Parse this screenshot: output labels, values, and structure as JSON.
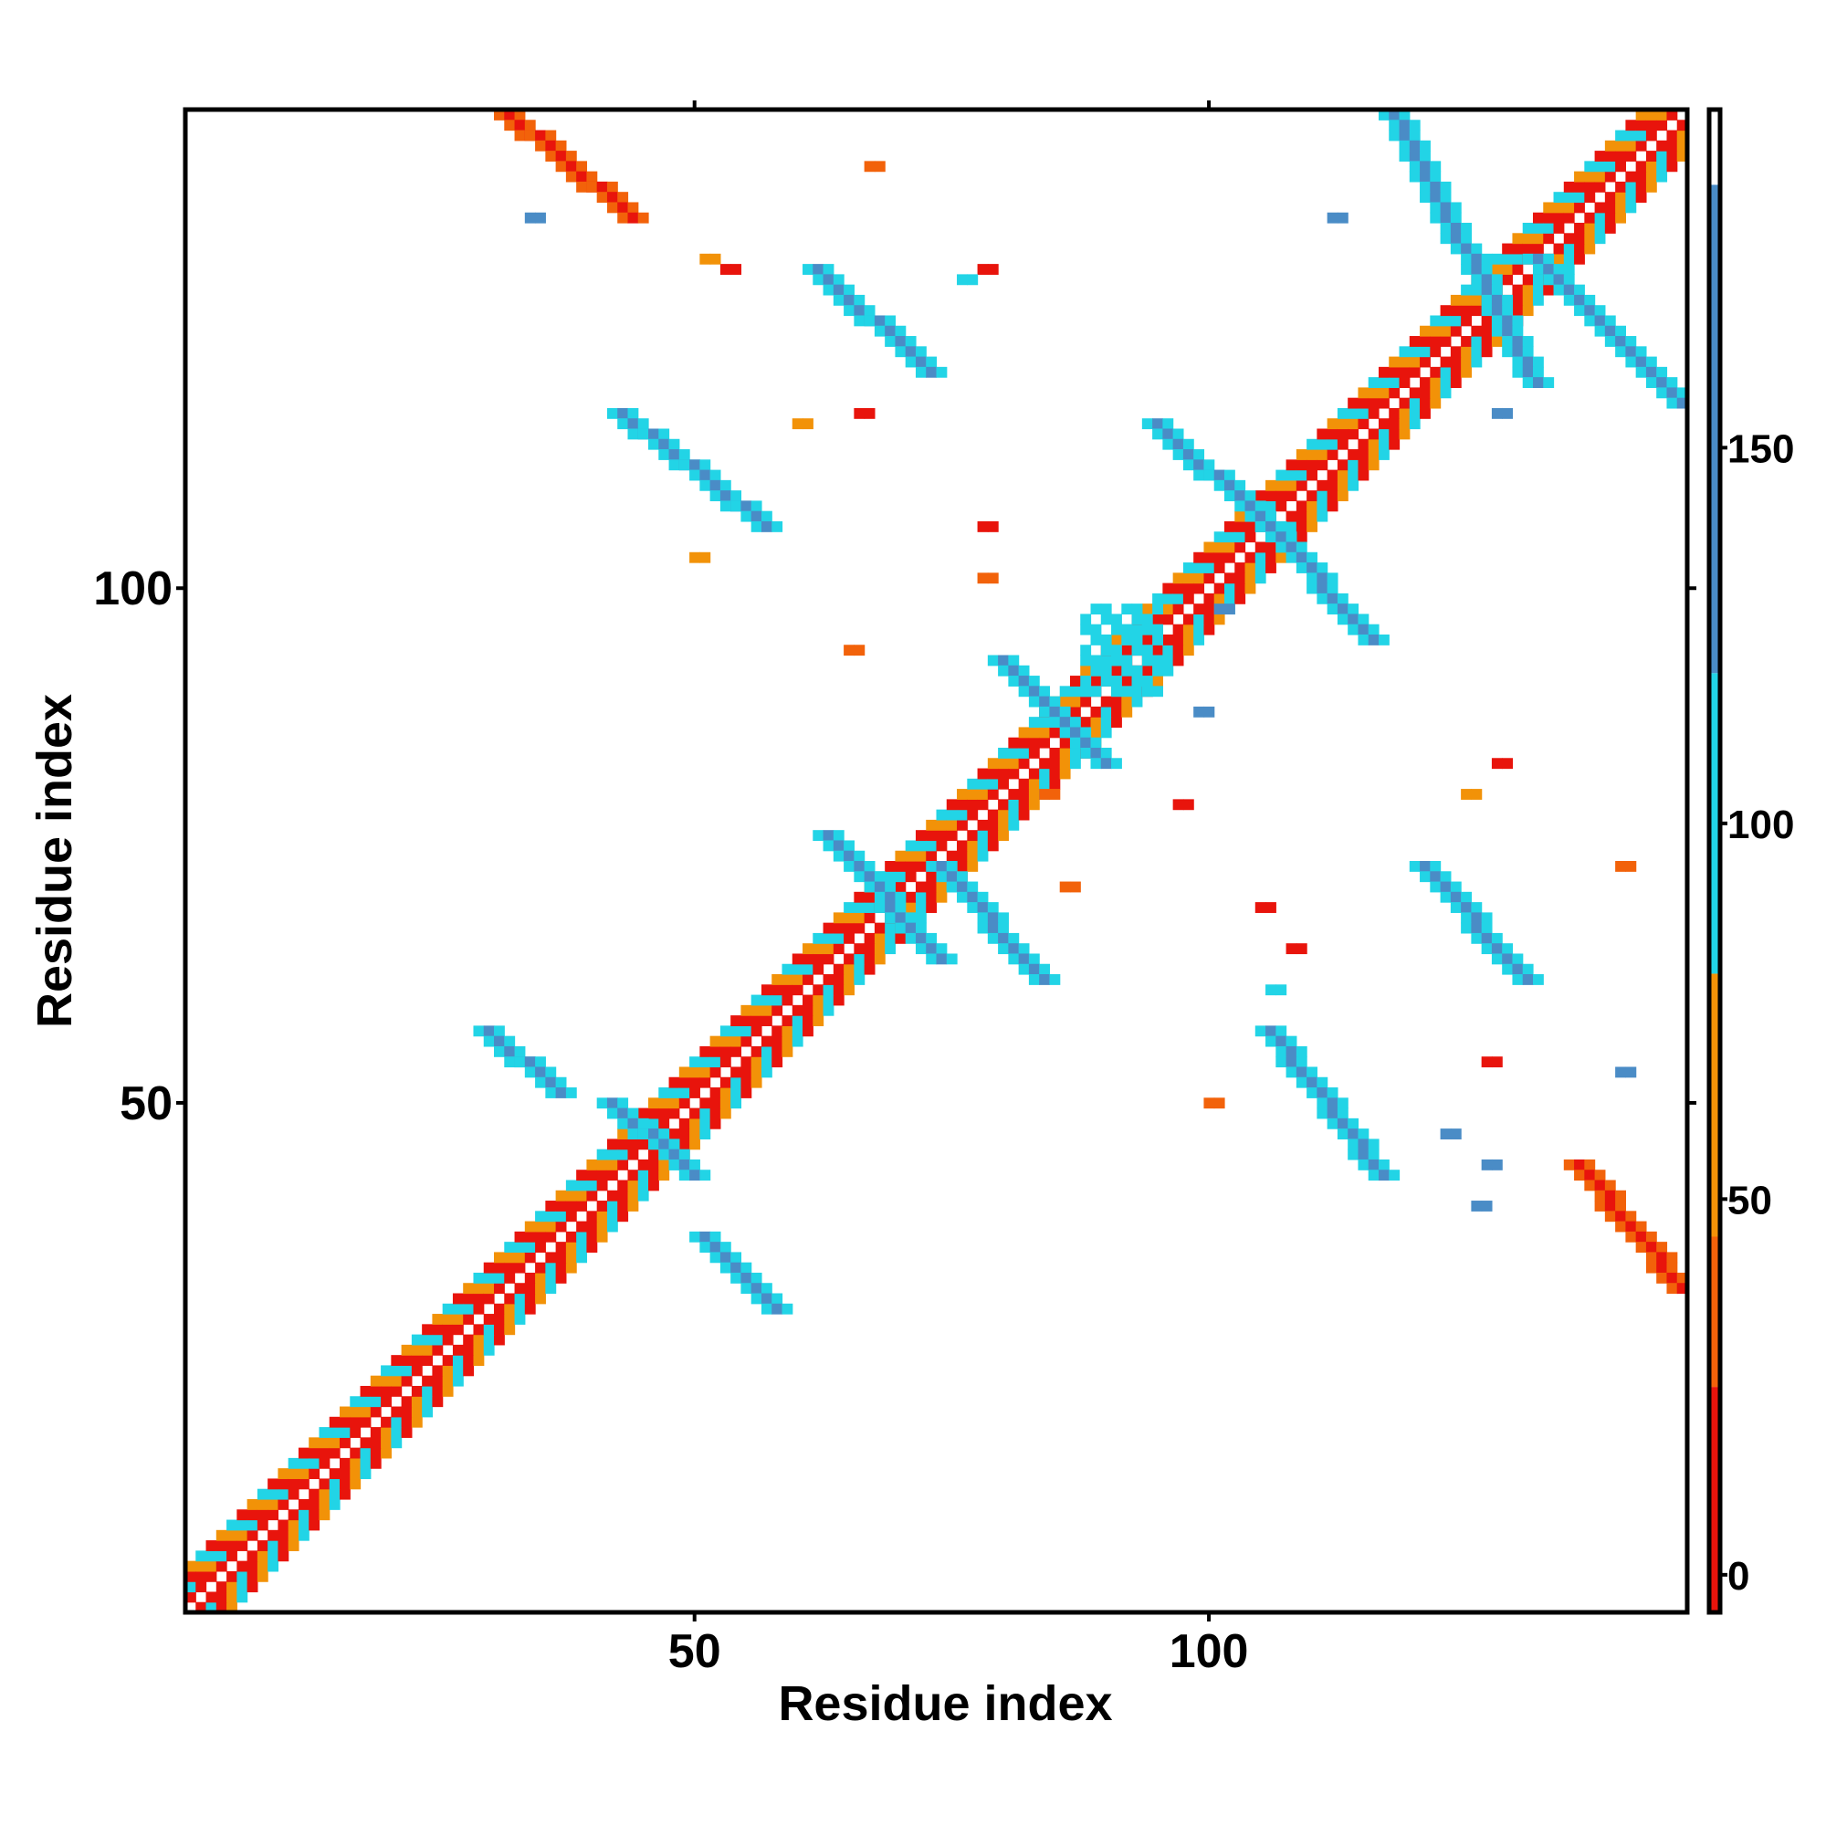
{
  "chart_data": {
    "type": "heatmap",
    "title": "",
    "xlabel": "Residue index",
    "ylabel": "Residue index",
    "xlim": [
      1,
      146
    ],
    "ylim": [
      1,
      146
    ],
    "x_ticks": [
      50,
      100
    ],
    "y_ticks": [
      50,
      100
    ],
    "x_tick_labels": [
      "50",
      "100"
    ],
    "y_tick_labels": [
      "50",
      "100"
    ],
    "grid": false,
    "legend": "right",
    "colorbar": {
      "range": [
        -5,
        195
      ],
      "ticks": [
        0,
        50,
        100,
        150
      ],
      "tick_labels": [
        "0",
        "50",
        "100",
        "150"
      ],
      "stops": [
        {
          "from": -5,
          "to": 25,
          "color": "#e8140c"
        },
        {
          "from": 25,
          "to": 45,
          "color": "#f2620a"
        },
        {
          "from": 45,
          "to": 80,
          "color": "#f29208"
        },
        {
          "from": 80,
          "to": 120,
          "color": "#22d4e6"
        },
        {
          "from": 120,
          "to": 185,
          "color": "#4a8cc6"
        },
        {
          "from": 185,
          "to": 195,
          "color": "#ffffff"
        }
      ]
    },
    "diagonal": {
      "from": 1,
      "to": 146,
      "band_offsets": [
        1,
        2,
        3,
        4
      ],
      "turn_colors": [
        "#e8140c",
        "#f29208",
        "#22d4e6"
      ]
    },
    "regions": [
      {
        "x": [
          32,
          44
        ],
        "y": [
          136,
          146
        ],
        "value": 10,
        "kind": "antiparallel"
      },
      {
        "x": [
          136,
          146
        ],
        "y": [
          32,
          44
        ],
        "value": 10,
        "kind": "antiparallel"
      },
      {
        "x": [
          118,
          132
        ],
        "y": [
          120,
          146
        ],
        "value": 150,
        "kind": "antiparallel"
      },
      {
        "x": [
          132,
          146
        ],
        "y": [
          118,
          132
        ],
        "value": 150,
        "kind": "antiparallel"
      },
      {
        "x": [
          62,
          73
        ],
        "y": [
          121,
          131
        ],
        "value": 150,
        "kind": "antiparallel"
      },
      {
        "x": [
          121,
          131
        ],
        "y": [
          62,
          73
        ],
        "value": 150,
        "kind": "antiparallel"
      },
      {
        "x": [
          43,
          57
        ],
        "y": [
          106,
          117
        ],
        "value": 150,
        "kind": "antiparallel"
      },
      {
        "x": [
          106,
          117
        ],
        "y": [
          43,
          57
        ],
        "value": 150,
        "kind": "antiparallel"
      },
      {
        "x": [
          95,
          106
        ],
        "y": [
          106,
          116
        ],
        "value": 150,
        "kind": "antiparallel"
      },
      {
        "x": [
          106,
          116
        ],
        "y": [
          95,
          106
        ],
        "value": 150,
        "kind": "antiparallel"
      },
      {
        "x": [
          80,
          90
        ],
        "y": [
          83,
          93
        ],
        "value": 150,
        "kind": "antiparallel"
      },
      {
        "x": [
          63,
          74
        ],
        "y": [
          64,
          76
        ],
        "value": 150,
        "kind": "antiparallel"
      },
      {
        "x": [
          74,
          84
        ],
        "y": [
          62,
          73
        ],
        "value": 150,
        "kind": "antiparallel"
      },
      {
        "x": [
          30,
          37
        ],
        "y": [
          51,
          57
        ],
        "value": 150,
        "kind": "antiparallel"
      },
      {
        "x": [
          51,
          58
        ],
        "y": [
          30,
          37
        ],
        "value": 150,
        "kind": "antiparallel"
      },
      {
        "x": [
          42,
          50
        ],
        "y": [
          43,
          50
        ],
        "value": 150,
        "kind": "antiparallel"
      },
      {
        "x": [
          88,
          95
        ],
        "y": [
          90,
          98
        ],
        "value": 110,
        "kind": "block"
      }
    ],
    "points": [
      {
        "x": 67,
        "y": 141,
        "value": 40
      },
      {
        "x": 53,
        "y": 131,
        "value": 20
      },
      {
        "x": 51,
        "y": 132,
        "value": 60
      },
      {
        "x": 78,
        "y": 131,
        "value": 20
      },
      {
        "x": 76,
        "y": 130,
        "value": 100
      },
      {
        "x": 66,
        "y": 117,
        "value": 20
      },
      {
        "x": 60,
        "y": 116,
        "value": 50
      },
      {
        "x": 50,
        "y": 103,
        "value": 50
      },
      {
        "x": 78,
        "y": 106,
        "value": 20
      },
      {
        "x": 78,
        "y": 101,
        "value": 40
      },
      {
        "x": 65,
        "y": 94,
        "value": 40
      },
      {
        "x": 97,
        "y": 79,
        "value": 20
      },
      {
        "x": 84,
        "y": 80,
        "value": 40
      },
      {
        "x": 86,
        "y": 71,
        "value": 40
      },
      {
        "x": 105,
        "y": 69,
        "value": 20
      },
      {
        "x": 128,
        "y": 83,
        "value": 20
      },
      {
        "x": 125,
        "y": 80,
        "value": 50
      },
      {
        "x": 140,
        "y": 73,
        "value": 40
      },
      {
        "x": 108,
        "y": 65,
        "value": 20
      },
      {
        "x": 106,
        "y": 61,
        "value": 100
      },
      {
        "x": 127,
        "y": 54,
        "value": 20
      },
      {
        "x": 100,
        "y": 50,
        "value": 40
      },
      {
        "x": 140,
        "y": 53,
        "value": 150
      },
      {
        "x": 127,
        "y": 44,
        "value": 150
      },
      {
        "x": 126,
        "y": 40,
        "value": 150
      },
      {
        "x": 123,
        "y": 47,
        "value": 150
      },
      {
        "x": 128,
        "y": 117,
        "value": 150
      },
      {
        "x": 112,
        "y": 136,
        "value": 150
      },
      {
        "x": 34,
        "y": 136,
        "value": 150
      },
      {
        "x": 101,
        "y": 98,
        "value": 150
      },
      {
        "x": 99,
        "y": 88,
        "value": 150
      }
    ]
  }
}
